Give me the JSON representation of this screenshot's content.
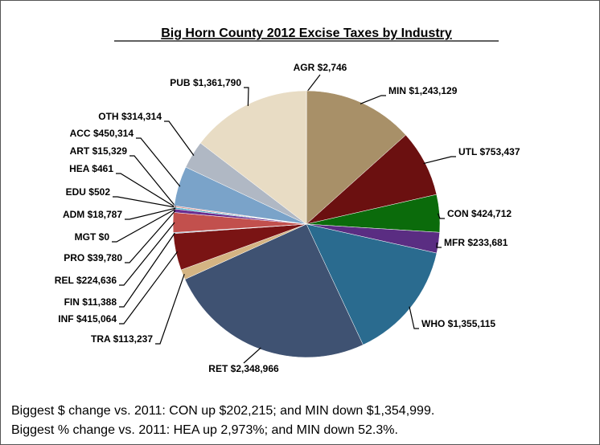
{
  "chart_data": {
    "type": "pie",
    "title": "Big Horn County 2012 Excise Taxes by Industry",
    "categories": [
      "AGR",
      "MIN",
      "UTL",
      "CON",
      "MFR",
      "WHO",
      "RET",
      "TRA",
      "INF",
      "FIN",
      "REL",
      "PRO",
      "MGT",
      "ADM",
      "EDU",
      "HEA",
      "ART",
      "ACC",
      "OTH",
      "PUB"
    ],
    "values": [
      2746,
      1243129,
      753437,
      424712,
      233681,
      1355115,
      2348966,
      113237,
      415064,
      11388,
      224636,
      39780,
      0,
      18787,
      502,
      461,
      15329,
      450314,
      314314,
      1361790
    ],
    "value_labels": [
      "$2,746",
      "$1,243,129",
      "$753,437",
      "$424,712",
      "$233,681",
      "$1,355,115",
      "$2,348,966",
      "$113,237",
      "$415,064",
      "$11,388",
      "$224,636",
      "$39,780",
      "$0",
      "$18,787",
      "$502",
      "$461",
      "$15,329",
      "$450,314",
      "$314,314",
      "$1,361,790"
    ],
    "colors": [
      "#c9a56a",
      "#a89068",
      "#6b1010",
      "#0b6b0b",
      "#5a2d82",
      "#2a6b8f",
      "#3f5272",
      "#d4b483",
      "#7a1414",
      "#9ab3d0",
      "#c2504d",
      "#6a2d8f",
      "#8064a2",
      "#4bacc6",
      "#f79646",
      "#9bbb59",
      "#d99694",
      "#7aa3c9",
      "#b0b8c4",
      "#e8dcc4"
    ],
    "notes": [
      "Biggest $ change vs. 2011: CON up $202,215; and MIN down $1,354,999.",
      "Biggest % change vs. 2011: HEA up 2,973%; and MIN down 52.3%."
    ]
  }
}
